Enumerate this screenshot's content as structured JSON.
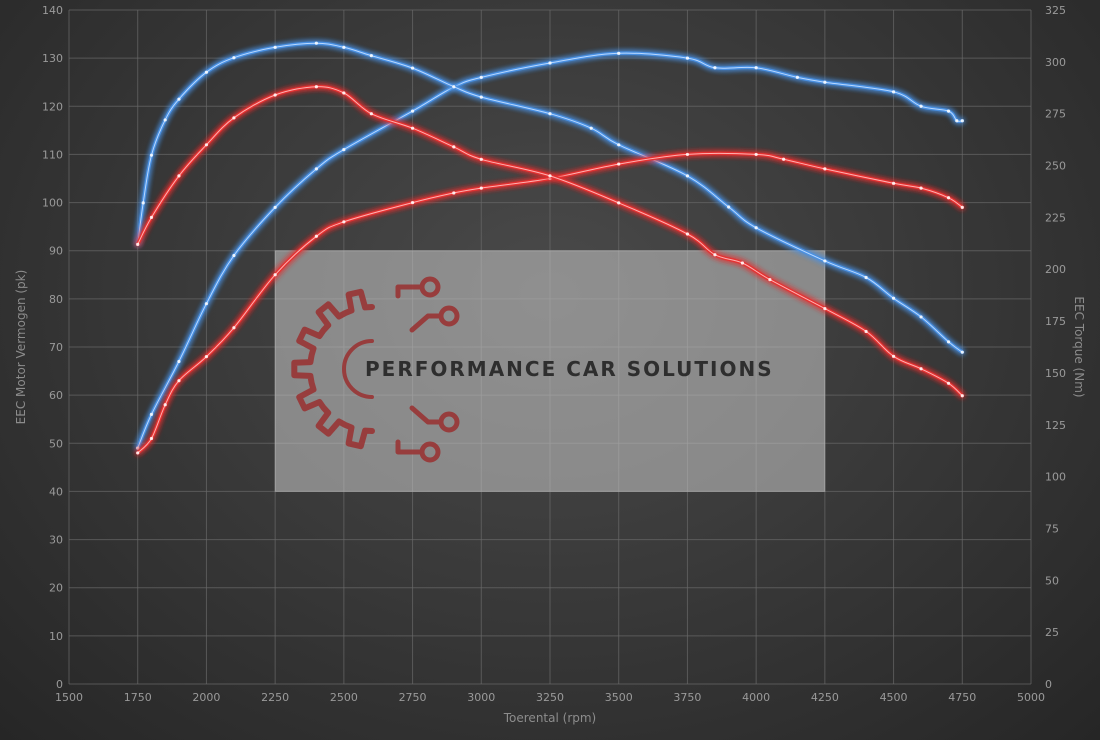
{
  "chart_data": {
    "type": "line",
    "xlabel": "Toerental (rpm)",
    "ylabel": "EEC Motor Vermogen (pk)",
    "y2label": "EEC Torque (Nm)",
    "xlim": [
      1500,
      5000
    ],
    "ylim": [
      0,
      140
    ],
    "y2lim": [
      0,
      325
    ],
    "x_ticks": [
      1500,
      1750,
      2000,
      2250,
      2500,
      2750,
      3000,
      3250,
      3500,
      3750,
      4000,
      4250,
      4500,
      4750,
      5000
    ],
    "y_ticks": [
      0,
      10,
      20,
      30,
      40,
      50,
      60,
      70,
      80,
      90,
      100,
      110,
      120,
      130,
      140
    ],
    "y2_ticks": [
      0,
      25,
      50,
      75,
      100,
      125,
      150,
      175,
      200,
      225,
      250,
      275,
      300,
      325
    ],
    "grid": true,
    "series": [
      {
        "axis": "left",
        "color": "#4a90e2",
        "points": [
          [
            1750,
            49
          ],
          [
            1800,
            56
          ],
          [
            1900,
            67
          ],
          [
            2000,
            79
          ],
          [
            2100,
            89
          ],
          [
            2250,
            99
          ],
          [
            2400,
            107
          ],
          [
            2500,
            111
          ],
          [
            2750,
            119
          ],
          [
            2900,
            124
          ],
          [
            3000,
            126
          ],
          [
            3250,
            129
          ],
          [
            3500,
            131
          ],
          [
            3750,
            130
          ],
          [
            3850,
            128
          ],
          [
            4000,
            128
          ],
          [
            4150,
            126
          ],
          [
            4250,
            125
          ],
          [
            4500,
            123
          ],
          [
            4600,
            120
          ],
          [
            4700,
            119
          ],
          [
            4730,
            117
          ],
          [
            4750,
            117
          ]
        ]
      },
      {
        "axis": "right",
        "color": "#4a90e2",
        "points": [
          [
            1750,
            212
          ],
          [
            1770,
            232
          ],
          [
            1800,
            255
          ],
          [
            1850,
            272
          ],
          [
            1900,
            282
          ],
          [
            2000,
            295
          ],
          [
            2100,
            302
          ],
          [
            2250,
            307
          ],
          [
            2400,
            309
          ],
          [
            2500,
            307
          ],
          [
            2600,
            303
          ],
          [
            2750,
            297
          ],
          [
            2900,
            288
          ],
          [
            3000,
            283
          ],
          [
            3250,
            275
          ],
          [
            3400,
            268
          ],
          [
            3500,
            260
          ],
          [
            3750,
            245
          ],
          [
            3900,
            230
          ],
          [
            4000,
            220
          ],
          [
            4250,
            204
          ],
          [
            4400,
            196
          ],
          [
            4500,
            186
          ],
          [
            4600,
            177
          ],
          [
            4700,
            165
          ],
          [
            4750,
            160
          ]
        ]
      },
      {
        "axis": "left",
        "color": "#e53030",
        "points": [
          [
            1750,
            48
          ],
          [
            1800,
            51
          ],
          [
            1850,
            58
          ],
          [
            1900,
            63
          ],
          [
            2000,
            68
          ],
          [
            2100,
            74
          ],
          [
            2250,
            85
          ],
          [
            2400,
            93
          ],
          [
            2500,
            96
          ],
          [
            2750,
            100
          ],
          [
            2900,
            102
          ],
          [
            3000,
            103
          ],
          [
            3250,
            105
          ],
          [
            3500,
            108
          ],
          [
            3750,
            110
          ],
          [
            4000,
            110
          ],
          [
            4100,
            109
          ],
          [
            4250,
            107
          ],
          [
            4500,
            104
          ],
          [
            4600,
            103
          ],
          [
            4700,
            101
          ],
          [
            4750,
            99
          ]
        ]
      },
      {
        "axis": "right",
        "color": "#e53030",
        "points": [
          [
            1750,
            212
          ],
          [
            1800,
            225
          ],
          [
            1900,
            245
          ],
          [
            2000,
            260
          ],
          [
            2100,
            273
          ],
          [
            2250,
            284
          ],
          [
            2400,
            288
          ],
          [
            2500,
            285
          ],
          [
            2600,
            275
          ],
          [
            2750,
            268
          ],
          [
            2900,
            259
          ],
          [
            3000,
            253
          ],
          [
            3250,
            245
          ],
          [
            3500,
            232
          ],
          [
            3750,
            217
          ],
          [
            3850,
            207
          ],
          [
            3950,
            203
          ],
          [
            4050,
            195
          ],
          [
            4250,
            181
          ],
          [
            4400,
            170
          ],
          [
            4500,
            158
          ],
          [
            4600,
            152
          ],
          [
            4700,
            145
          ],
          [
            4750,
            139
          ]
        ]
      }
    ]
  },
  "watermark": {
    "text": "PERFORMANCE CAR SOLUTIONS",
    "icon": "gear-circuit-logo-icon",
    "panel_x_range": [
      2250,
      4250
    ],
    "panel_y_range": [
      40,
      90
    ]
  }
}
